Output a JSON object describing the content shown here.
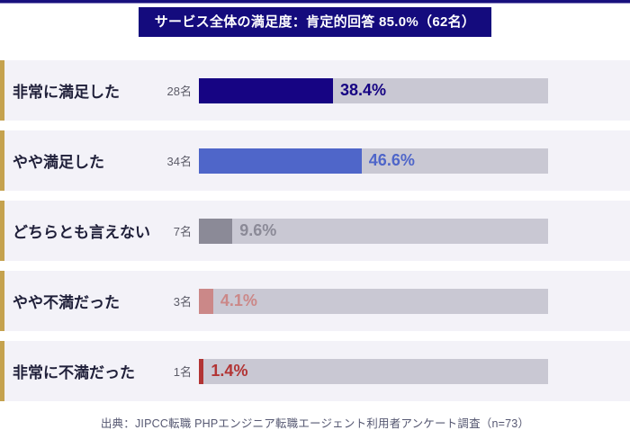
{
  "header": {
    "title": "サービス全体の満足度：肯定的回答 85.0%（62名）"
  },
  "chart_data": {
    "type": "bar",
    "orientation": "horizontal",
    "title": "サービス全体の満足度：肯定的回答 85.0%（62名）",
    "categories": [
      "非常に満足した",
      "やや満足した",
      "どちらとも言えない",
      "やや不満だった",
      "非常に不満だった"
    ],
    "counts": [
      "28名",
      "34名",
      "7名",
      "3名",
      "1名"
    ],
    "values": [
      38.4,
      46.6,
      9.6,
      4.1,
      1.4
    ],
    "value_labels": [
      "38.4%",
      "46.6%",
      "9.6%",
      "4.1%",
      "1.4%"
    ],
    "bar_colors": [
      "#160483",
      "#4f66c9",
      "#8b8a97",
      "#cb8888",
      "#b23434"
    ],
    "track_color": "#c9c8d3",
    "xlim": [
      0,
      100
    ],
    "grid": false,
    "legend": false,
    "n_total": "n=73"
  },
  "footer": {
    "source": "出典：JIPCC転職 PHPエンジニア転職エージェント利用者アンケート調査（n=73）"
  },
  "colors": {
    "accent_navy": "#140b7d",
    "row_background": "#f3f2f8",
    "gold_stripe": "#c5a24e",
    "label_text": "#20203a",
    "count_text": "#5c5c68",
    "footer_text": "#565872"
  }
}
